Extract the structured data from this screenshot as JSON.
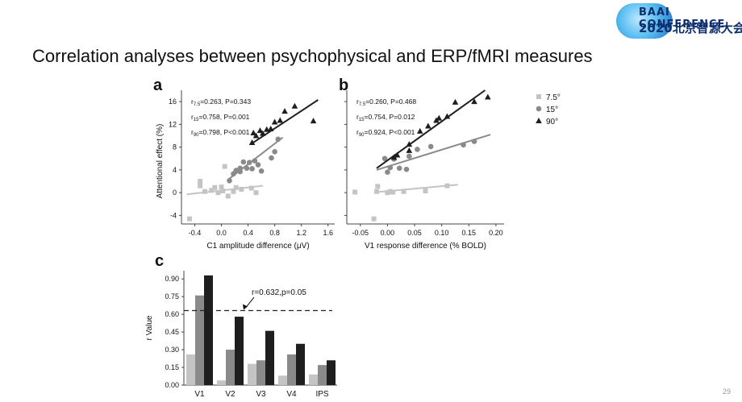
{
  "slide": {
    "title": "Correlation analyses between psychophysical and ERP/fMRI measures",
    "page_number": "29",
    "logo_line1": "BAAI CONFERENCE",
    "logo_line2": "2020北京智源大会"
  },
  "colors": {
    "light": "#c4c4c4",
    "mid": "#8a8a8a",
    "dark": "#1e1e1e",
    "dashed": "#222222"
  },
  "chart_data": [
    {
      "type": "scatter",
      "panel_label": "a",
      "xlabel": "C1 amplitude difference (μV)",
      "ylabel": "Attentional effect (%)",
      "xlim": [
        -0.6,
        1.7
      ],
      "ylim": [
        -5.5,
        18
      ],
      "xticks": [
        -0.4,
        0.0,
        0.4,
        0.8,
        1.2,
        1.6
      ],
      "xtick_labels": [
        "-0.4",
        "0.0",
        "0.4",
        "0.8",
        "1.2",
        "1.6"
      ],
      "yticks": [
        -4,
        0,
        4,
        8,
        12,
        16
      ],
      "ytick_labels": [
        "-4",
        "0",
        "4",
        "8",
        "12",
        "16"
      ],
      "stats": [
        {
          "r": "r",
          "sub": "7.5",
          "rest": "=0.263,  P=0.343"
        },
        {
          "r": "r",
          "sub": "15",
          "rest": "=0.758,  P=0.001"
        },
        {
          "r": "r",
          "sub": "90",
          "rest": "=0.798,  P<0.001"
        }
      ],
      "series": [
        {
          "marker": "square",
          "shade": "light",
          "points": [
            [
              -0.48,
              -4.6
            ],
            [
              -0.32,
              2.0
            ],
            [
              -0.32,
              1.2
            ],
            [
              -0.25,
              0.2
            ],
            [
              -0.15,
              0.4
            ],
            [
              -0.1,
              0.9
            ],
            [
              -0.05,
              0.0
            ],
            [
              0.0,
              1.0
            ],
            [
              0.02,
              0.3
            ],
            [
              0.05,
              4.6
            ],
            [
              0.1,
              -0.6
            ],
            [
              0.18,
              0.2
            ],
            [
              0.22,
              0.9
            ],
            [
              0.3,
              0.6
            ],
            [
              0.45,
              0.8
            ],
            [
              0.52,
              0.0
            ]
          ],
          "fit": [
            [
              -0.52,
              -0.3
            ],
            [
              0.62,
              1.2
            ]
          ]
        },
        {
          "marker": "circle",
          "shade": "mid",
          "points": [
            [
              0.12,
              2.1
            ],
            [
              0.18,
              3.3
            ],
            [
              0.22,
              3.9
            ],
            [
              0.28,
              4.3
            ],
            [
              0.33,
              5.4
            ],
            [
              0.38,
              4.3
            ],
            [
              0.42,
              5.3
            ],
            [
              0.46,
              4.2
            ],
            [
              0.5,
              5.6
            ],
            [
              0.55,
              4.9
            ],
            [
              0.6,
              3.8
            ],
            [
              0.75,
              6.1
            ],
            [
              0.8,
              7.2
            ],
            [
              0.85,
              9.4
            ],
            [
              0.28,
              3.7
            ]
          ],
          "fit": [
            [
              0.1,
              2.3
            ],
            [
              0.92,
              9.7
            ]
          ]
        },
        {
          "marker": "triangle",
          "shade": "dark",
          "points": [
            [
              0.46,
              8.8
            ],
            [
              0.52,
              10.0
            ],
            [
              0.58,
              10.9
            ],
            [
              0.62,
              10.4
            ],
            [
              0.68,
              11.1
            ],
            [
              0.74,
              11.2
            ],
            [
              0.8,
              12.4
            ],
            [
              0.88,
              12.7
            ],
            [
              0.95,
              14.3
            ],
            [
              1.1,
              15.2
            ],
            [
              1.38,
              12.6
            ],
            [
              0.48,
              10.5
            ]
          ],
          "fit": [
            [
              0.45,
              8.6
            ],
            [
              1.45,
              16.3
            ]
          ]
        }
      ]
    },
    {
      "type": "scatter",
      "panel_label": "b",
      "xlabel": "V1 response difference (% BOLD)",
      "ylabel": "",
      "xlim": [
        -0.075,
        0.215
      ],
      "ylim": [
        -5.5,
        18
      ],
      "xticks": [
        -0.05,
        0.0,
        0.05,
        0.1,
        0.15,
        0.2
      ],
      "xtick_labels": [
        "-0.05",
        "0.00",
        "0.05",
        "0.10",
        "0.15",
        "0.20"
      ],
      "yticks": [
        -4,
        0,
        4,
        8,
        12,
        16
      ],
      "stats": [
        {
          "r": "r",
          "sub": "7.5",
          "rest": "=0.260,  P=0.468"
        },
        {
          "r": "r",
          "sub": "15",
          "rest": "=0.754,  P=0.012"
        },
        {
          "r": "r",
          "sub": "90",
          "rest": "=0.924,  P<0.001"
        }
      ],
      "legend": [
        "7.5°",
        "15°",
        "90°"
      ],
      "series": [
        {
          "marker": "square",
          "shade": "light",
          "points": [
            [
              -0.06,
              0.1
            ],
            [
              -0.025,
              -4.6
            ],
            [
              -0.02,
              0.2
            ],
            [
              -0.018,
              1.1
            ],
            [
              0.0,
              0.0
            ],
            [
              0.005,
              0.2
            ],
            [
              0.01,
              0.1
            ],
            [
              0.03,
              0.2
            ],
            [
              0.07,
              0.3
            ],
            [
              0.11,
              1.2
            ]
          ],
          "fit": [
            [
              -0.02,
              0.1
            ],
            [
              0.13,
              1.4
            ]
          ]
        },
        {
          "marker": "circle",
          "shade": "mid",
          "points": [
            [
              0.0,
              3.6
            ],
            [
              0.005,
              4.4
            ],
            [
              0.012,
              5.9
            ],
            [
              0.022,
              4.3
            ],
            [
              0.035,
              4.1
            ],
            [
              0.055,
              7.6
            ],
            [
              0.08,
              8.1
            ],
            [
              0.14,
              8.4
            ],
            [
              0.16,
              9.0
            ],
            [
              -0.005,
              6.0
            ],
            [
              0.04,
              6.4
            ]
          ],
          "fit": [
            [
              -0.02,
              4.0
            ],
            [
              0.19,
              10.2
            ]
          ]
        },
        {
          "marker": "triangle",
          "shade": "dark",
          "points": [
            [
              0.012,
              6.2
            ],
            [
              0.018,
              6.6
            ],
            [
              0.04,
              7.4
            ],
            [
              0.06,
              10.8
            ],
            [
              0.075,
              11.7
            ],
            [
              0.09,
              12.7
            ],
            [
              0.095,
              13.1
            ],
            [
              0.11,
              13.4
            ],
            [
              0.125,
              15.9
            ],
            [
              0.16,
              16.0
            ],
            [
              0.185,
              16.8
            ],
            [
              0.04,
              8.5
            ]
          ],
          "fit": [
            [
              -0.02,
              4.3
            ],
            [
              0.18,
              18.0
            ]
          ]
        }
      ]
    },
    {
      "type": "bar",
      "panel_label": "c",
      "ylabel": "r Value",
      "categories": [
        "V1",
        "V2",
        "V3",
        "V4",
        "IPS"
      ],
      "ylim": [
        0,
        0.97
      ],
      "yticks": [
        0.0,
        0.15,
        0.3,
        0.45,
        0.6,
        0.75,
        0.9
      ],
      "ytick_labels": [
        "0.00",
        "0.15",
        "0.30",
        "0.45",
        "0.60",
        "0.75",
        "0.90"
      ],
      "series": [
        {
          "name": "7.5°",
          "shade": "light",
          "values": [
            0.26,
            0.04,
            0.18,
            0.08,
            0.09
          ]
        },
        {
          "name": "15°",
          "shade": "mid",
          "values": [
            0.76,
            0.3,
            0.21,
            0.26,
            0.17
          ]
        },
        {
          "name": "90°",
          "shade": "dark",
          "values": [
            0.93,
            0.58,
            0.46,
            0.35,
            0.21
          ]
        }
      ],
      "threshold": {
        "value": 0.632,
        "label": "r=0.632,p=0.05"
      }
    }
  ]
}
